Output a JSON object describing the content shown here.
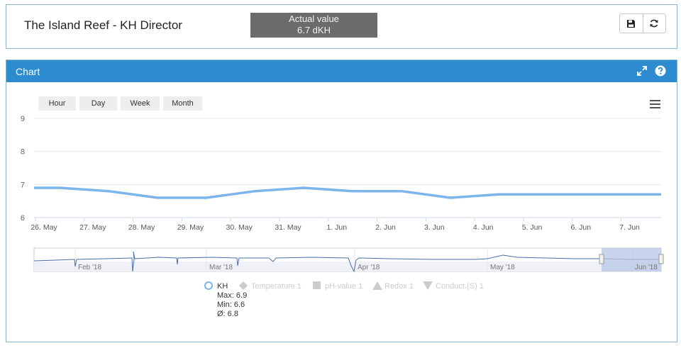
{
  "header": {
    "title": "The Island Reef - KH Director",
    "actual_label": "Actual value",
    "actual_value": "6.7 dKH",
    "save_icon": "floppy-disk-icon",
    "refresh_icon": "refresh-icon"
  },
  "panel": {
    "title": "Chart",
    "expand_icon": "expand-arrows-icon",
    "help_icon": "question-circle-icon"
  },
  "range_buttons": [
    "Hour",
    "Day",
    "Week",
    "Month"
  ],
  "menu_icon": "hamburger-menu-icon",
  "navigator": {
    "labels": [
      "Feb '18",
      "Mar '18",
      "Apr '18",
      "May '18",
      "Jun '18"
    ]
  },
  "legend": {
    "items": [
      {
        "name": "KH",
        "symbol": "circle",
        "active": true
      },
      {
        "name": "Temperature 1",
        "symbol": "diamond",
        "active": false
      },
      {
        "name": "pH-value 1",
        "symbol": "square",
        "active": false
      },
      {
        "name": "Redox 1",
        "symbol": "triangle",
        "active": false
      },
      {
        "name": "Conduct.(S) 1",
        "symbol": "triangle-down",
        "active": false
      }
    ],
    "stats": {
      "max": "Max: 6.9",
      "min": "Min: 6.6",
      "avg": "Ø: 6.8"
    }
  },
  "colors": {
    "header_blue": "#2d8bcf",
    "series": "#7cb5ec",
    "actual_box": "#6b6b6b"
  },
  "chart_data": {
    "type": "line",
    "title": "",
    "xlabel": "",
    "ylabel": "",
    "categories": [
      "26. May",
      "27. May",
      "28. May",
      "29. May",
      "30. May",
      "31. May",
      "1. Jun",
      "2. Jun",
      "3. Jun",
      "4. Jun",
      "5. Jun",
      "6. Jun",
      "7. Jun"
    ],
    "yticks": [
      6,
      7,
      8,
      9
    ],
    "ylim": [
      6,
      9
    ],
    "grid": true,
    "series": [
      {
        "name": "KH",
        "x": [
          "25. May 12:00",
          "26. May 12:00",
          "27. May 12:00",
          "28. May 12:00",
          "29. May 12:00",
          "30. May 12:00",
          "31. May 12:00",
          "1. Jun 12:00",
          "2. Jun 12:00",
          "3. Jun 12:00",
          "4. Jun 12:00",
          "5. Jun 12:00",
          "6. Jun 12:00",
          "7. Jun 12:00",
          "8. Jun 00:00"
        ],
        "values": [
          6.9,
          6.9,
          6.8,
          6.6,
          6.6,
          6.8,
          6.9,
          6.8,
          6.8,
          6.6,
          6.7,
          6.7,
          6.7,
          6.7,
          6.7
        ]
      }
    ]
  }
}
